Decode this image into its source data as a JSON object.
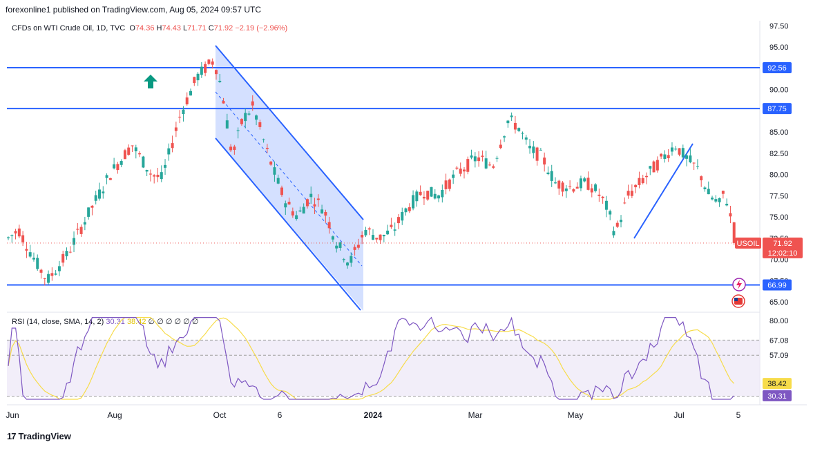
{
  "publish_line": "forexonline1 published on TradingView.com, Aug 05, 2024 09:57 UTC",
  "header": {
    "symbol_title": "CFDs on WTI Crude Oil, 1D, TVC",
    "open_label": "O",
    "open_value": "74.36",
    "high_label": "H",
    "high_value": "74.43",
    "low_label": "L",
    "low_value": "71.71",
    "close_label": "C",
    "close_value": "71.92",
    "change": "−2.19 (−2.96%)"
  },
  "rsi_header": {
    "label": "RSI (14, close, SMA, 14, 2)",
    "rsi_value": "30.31",
    "sma_value": "38.42",
    "empty_values": [
      "∅",
      "∅",
      "∅",
      "∅",
      "∅",
      "∅"
    ]
  },
  "price_axis_ticks": [
    "97.50",
    "95.00",
    "90.00",
    "85.00",
    "82.50",
    "80.00",
    "77.50",
    "75.00",
    "72.50",
    "70.00",
    "67.50",
    "65.00"
  ],
  "rsi_axis_ticks": [
    "80.00",
    "67.08",
    "57.09"
  ],
  "x_axis_labels": [
    "Jun",
    "Aug",
    "Oct",
    "6",
    "2024",
    "Mar",
    "May",
    "Jul",
    "5"
  ],
  "horizontal_levels": [
    {
      "value": 92.56,
      "label": "92.56"
    },
    {
      "value": 87.75,
      "label": "87.75"
    },
    {
      "value": 66.99,
      "label": "66.99"
    }
  ],
  "price_tag": {
    "symbol": "USOIL",
    "value": "71.92",
    "countdown": "12:02:10"
  },
  "rsi_tags": {
    "sma": "38.42",
    "rsi": "30.31"
  },
  "footer_brand": "TradingView",
  "colors": {
    "up": "#26a69a",
    "down": "#ef5350",
    "level_line": "#2962ff",
    "channel_fill": "#2962ff",
    "rsi_line": "#7e57c2",
    "rsi_sma": "#f7dc4a",
    "rsi_band": "#ede7f6",
    "arrow": "#089981"
  },
  "chart_data": [
    {
      "type": "candlestick",
      "title": "CFDs on WTI Crude Oil, 1D, TVC",
      "ylim": [
        64.0,
        98.5
      ],
      "x_labels": [
        "Jun",
        "Aug",
        "Oct",
        "6",
        "2024",
        "Mar",
        "May",
        "Jul",
        "5"
      ],
      "last_close": 71.92,
      "key_points": [
        {
          "t": 0,
          "v": 72.5
        },
        {
          "t": 8,
          "v": 73.5
        },
        {
          "t": 20,
          "v": 70.0
        },
        {
          "t": 30,
          "v": 67.5
        },
        {
          "t": 45,
          "v": 70.5
        },
        {
          "t": 62,
          "v": 75.5
        },
        {
          "t": 78,
          "v": 80.0
        },
        {
          "t": 95,
          "v": 83.5
        },
        {
          "t": 110,
          "v": 80.0
        },
        {
          "t": 118,
          "v": 79.5
        },
        {
          "t": 132,
          "v": 87.0
        },
        {
          "t": 145,
          "v": 91.5
        },
        {
          "t": 158,
          "v": 93.5
        },
        {
          "t": 164,
          "v": 90.0
        },
        {
          "t": 172,
          "v": 82.0
        },
        {
          "t": 180,
          "v": 86.5
        },
        {
          "t": 188,
          "v": 88.0
        },
        {
          "t": 200,
          "v": 82.0
        },
        {
          "t": 212,
          "v": 77.0
        },
        {
          "t": 222,
          "v": 75.0
        },
        {
          "t": 232,
          "v": 77.5
        },
        {
          "t": 242,
          "v": 76.0
        },
        {
          "t": 252,
          "v": 72.0
        },
        {
          "t": 262,
          "v": 69.5
        },
        {
          "t": 274,
          "v": 73.5
        },
        {
          "t": 285,
          "v": 72.5
        },
        {
          "t": 296,
          "v": 73.5
        },
        {
          "t": 306,
          "v": 76.0
        },
        {
          "t": 318,
          "v": 78.0
        },
        {
          "t": 330,
          "v": 77.5
        },
        {
          "t": 344,
          "v": 80.0
        },
        {
          "t": 360,
          "v": 82.0
        },
        {
          "t": 372,
          "v": 81.0
        },
        {
          "t": 384,
          "v": 86.5
        },
        {
          "t": 392,
          "v": 85.5
        },
        {
          "t": 400,
          "v": 83.0
        },
        {
          "t": 410,
          "v": 82.0
        },
        {
          "t": 420,
          "v": 79.0
        },
        {
          "t": 432,
          "v": 78.5
        },
        {
          "t": 444,
          "v": 79.0
        },
        {
          "t": 452,
          "v": 78.0
        },
        {
          "t": 460,
          "v": 76.0
        },
        {
          "t": 466,
          "v": 73.0
        },
        {
          "t": 476,
          "v": 77.5
        },
        {
          "t": 488,
          "v": 79.5
        },
        {
          "t": 500,
          "v": 81.5
        },
        {
          "t": 512,
          "v": 83.5
        },
        {
          "t": 520,
          "v": 82.0
        },
        {
          "t": 530,
          "v": 80.5
        },
        {
          "t": 538,
          "v": 77.5
        },
        {
          "t": 546,
          "v": 76.5
        },
        {
          "t": 550,
          "v": 78.0
        },
        {
          "t": 556,
          "v": 74.0
        },
        {
          "t": 560,
          "v": 71.92
        }
      ],
      "rsi_ylim": [
        28,
        82
      ],
      "rsi_levels": [
        67.08,
        57.09
      ],
      "rsi_last": 30.31,
      "rsi_sma_last": 38.42
    }
  ]
}
